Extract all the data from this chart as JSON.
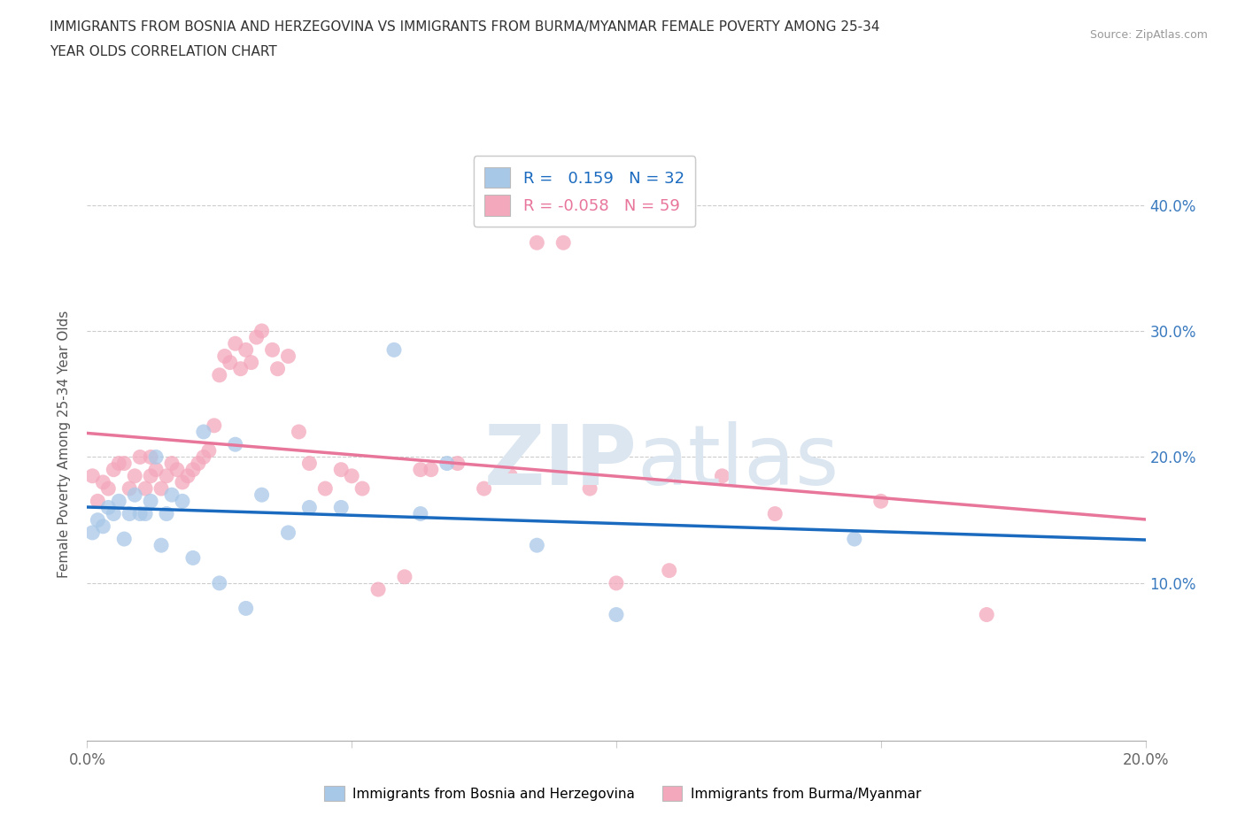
{
  "title_line1": "IMMIGRANTS FROM BOSNIA AND HERZEGOVINA VS IMMIGRANTS FROM BURMA/MYANMAR FEMALE POVERTY AMONG 25-34",
  "title_line2": "YEAR OLDS CORRELATION CHART",
  "source": "Source: ZipAtlas.com",
  "ylabel": "Female Poverty Among 25-34 Year Olds",
  "xlim": [
    0.0,
    0.2
  ],
  "ylim": [
    -0.025,
    0.445
  ],
  "yticks": [
    0.0,
    0.1,
    0.2,
    0.3,
    0.4
  ],
  "ytick_labels": [
    "",
    "10.0%",
    "20.0%",
    "30.0%",
    "40.0%"
  ],
  "xticks": [
    0.0,
    0.05,
    0.1,
    0.15,
    0.2
  ],
  "xtick_labels": [
    "0.0%",
    "",
    "",
    "",
    "20.0%"
  ],
  "r_bosnia": 0.159,
  "n_bosnia": 32,
  "r_burma": -0.058,
  "n_burma": 59,
  "color_bosnia": "#a8c8e8",
  "color_burma": "#f4a8bc",
  "line_color_bosnia": "#1a6abf",
  "line_color_burma": "#e8759a",
  "watermark_color": "#d0dce8",
  "bosnia_x": [
    0.001,
    0.002,
    0.003,
    0.004,
    0.005,
    0.006,
    0.007,
    0.008,
    0.009,
    0.01,
    0.011,
    0.012,
    0.013,
    0.014,
    0.015,
    0.016,
    0.018,
    0.02,
    0.022,
    0.025,
    0.028,
    0.03,
    0.033,
    0.038,
    0.042,
    0.048,
    0.058,
    0.063,
    0.068,
    0.085,
    0.1,
    0.145
  ],
  "bosnia_y": [
    0.14,
    0.15,
    0.145,
    0.16,
    0.155,
    0.165,
    0.135,
    0.155,
    0.17,
    0.155,
    0.155,
    0.165,
    0.2,
    0.13,
    0.155,
    0.17,
    0.165,
    0.12,
    0.22,
    0.1,
    0.21,
    0.08,
    0.17,
    0.14,
    0.16,
    0.16,
    0.285,
    0.155,
    0.195,
    0.13,
    0.075,
    0.135
  ],
  "burma_x": [
    0.001,
    0.002,
    0.003,
    0.004,
    0.005,
    0.006,
    0.007,
    0.008,
    0.009,
    0.01,
    0.011,
    0.012,
    0.012,
    0.013,
    0.014,
    0.015,
    0.016,
    0.017,
    0.018,
    0.019,
    0.02,
    0.021,
    0.022,
    0.023,
    0.024,
    0.025,
    0.026,
    0.027,
    0.028,
    0.029,
    0.03,
    0.031,
    0.032,
    0.033,
    0.035,
    0.036,
    0.038,
    0.04,
    0.042,
    0.045,
    0.048,
    0.05,
    0.052,
    0.055,
    0.06,
    0.063,
    0.065,
    0.07,
    0.075,
    0.08,
    0.085,
    0.09,
    0.095,
    0.1,
    0.11,
    0.12,
    0.13,
    0.15,
    0.17
  ],
  "burma_y": [
    0.185,
    0.165,
    0.18,
    0.175,
    0.19,
    0.195,
    0.195,
    0.175,
    0.185,
    0.2,
    0.175,
    0.185,
    0.2,
    0.19,
    0.175,
    0.185,
    0.195,
    0.19,
    0.18,
    0.185,
    0.19,
    0.195,
    0.2,
    0.205,
    0.225,
    0.265,
    0.28,
    0.275,
    0.29,
    0.27,
    0.285,
    0.275,
    0.295,
    0.3,
    0.285,
    0.27,
    0.28,
    0.22,
    0.195,
    0.175,
    0.19,
    0.185,
    0.175,
    0.095,
    0.105,
    0.19,
    0.19,
    0.195,
    0.175,
    0.185,
    0.37,
    0.37,
    0.175,
    0.1,
    0.11,
    0.185,
    0.155,
    0.165,
    0.075
  ]
}
